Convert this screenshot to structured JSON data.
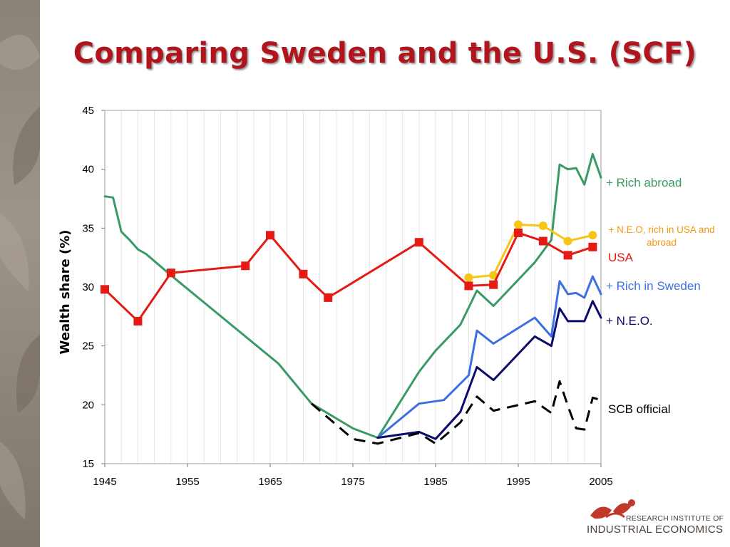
{
  "title": "Comparing Sweden and the U.S. (SCF)",
  "colors": {
    "title": "#b0151e",
    "rich_abroad": "#3a9a66",
    "neo_rich_usa": "#f5c518",
    "usa": "#e31b14",
    "rich_in_sweden": "#3c6fe0",
    "neo": "#0b0a6e",
    "scb": "#000000",
    "legend_neo_rich_usa_text": "#f39a12"
  },
  "logo": {
    "line1": "RESEARCH INSTITUTE OF",
    "line2": "INDUSTRIAL ECONOMICS"
  },
  "chart_data": {
    "type": "line",
    "title": "Comparing Sweden and the U.S. (SCF)",
    "xlabel": "",
    "ylabel": "Wealth share (%)",
    "xlim": [
      1945,
      2005
    ],
    "ylim": [
      15,
      45
    ],
    "x_ticks": [
      "1945",
      "1955",
      "1965",
      "1975",
      "1985",
      "1995",
      "2005"
    ],
    "y_ticks": [
      "15",
      "20",
      "25",
      "30",
      "35",
      "40",
      "45"
    ],
    "grid": "vertical",
    "legend_position": "right-inline",
    "series": [
      {
        "name": "+ Rich abroad",
        "key": "rich_abroad",
        "style": "solid",
        "x": [
          1945,
          1946,
          1947,
          1948,
          1949,
          1950,
          1953,
          1966,
          1970,
          1975,
          1978,
          1983,
          1985,
          1988,
          1990,
          1992,
          1997,
          1999,
          2000,
          2001,
          2002,
          2003,
          2004,
          2005
        ],
        "values": [
          37.7,
          37.6,
          34.7,
          34.0,
          33.2,
          32.8,
          31.0,
          23.5,
          20.1,
          18.0,
          17.2,
          22.8,
          24.6,
          26.8,
          29.7,
          28.4,
          32.1,
          34.0,
          40.4,
          40.0,
          40.1,
          38.7,
          41.3,
          39.3
        ]
      },
      {
        "name": "+ N.E.O, rich in USA and abroad",
        "key": "neo_rich_usa",
        "style": "solid-markers-circle",
        "x": [
          1989,
          1992,
          1995,
          1998,
          2001,
          2004
        ],
        "values": [
          30.8,
          31.0,
          35.3,
          35.2,
          33.9,
          34.4
        ]
      },
      {
        "name": "USA",
        "key": "usa",
        "style": "solid-markers-square",
        "x": [
          1945,
          1949,
          1953,
          1962,
          1965,
          1969,
          1972,
          1983,
          1989,
          1992,
          1995,
          1998,
          2001,
          2004
        ],
        "values": [
          29.8,
          27.1,
          31.2,
          31.8,
          34.4,
          31.1,
          29.1,
          33.8,
          30.1,
          30.2,
          34.6,
          33.9,
          32.7,
          33.4
        ]
      },
      {
        "name": "+ Rich in Sweden",
        "key": "rich_in_sweden",
        "style": "solid",
        "x": [
          1978,
          1983,
          1986,
          1989,
          1990,
          1992,
          1997,
          1999,
          2000,
          2001,
          2002,
          2003,
          2004,
          2005
        ],
        "values": [
          17.2,
          20.1,
          20.4,
          22.5,
          26.3,
          25.2,
          27.4,
          25.8,
          30.5,
          29.4,
          29.5,
          29.1,
          30.9,
          29.4
        ]
      },
      {
        "name": "+ N.E.O.",
        "key": "neo",
        "style": "solid",
        "x": [
          1978,
          1983,
          1985,
          1988,
          1990,
          1992,
          1997,
          1999,
          2000,
          2001,
          2002,
          2003,
          2004,
          2005
        ],
        "values": [
          17.2,
          17.7,
          17.1,
          19.4,
          23.2,
          22.1,
          25.8,
          25.0,
          28.2,
          27.1,
          27.1,
          27.1,
          28.8,
          27.4
        ]
      },
      {
        "name": "SCB official",
        "key": "scb",
        "style": "dashed",
        "x": [
          1970,
          1975,
          1978,
          1983,
          1985,
          1988,
          1990,
          1992,
          1997,
          1999,
          2000,
          2001,
          2002,
          2003,
          2004,
          2005
        ],
        "values": [
          20.1,
          17.1,
          16.7,
          17.6,
          16.7,
          18.5,
          20.7,
          19.5,
          20.3,
          19.3,
          22.0,
          19.9,
          18.0,
          17.9,
          20.6,
          20.4
        ]
      }
    ]
  }
}
